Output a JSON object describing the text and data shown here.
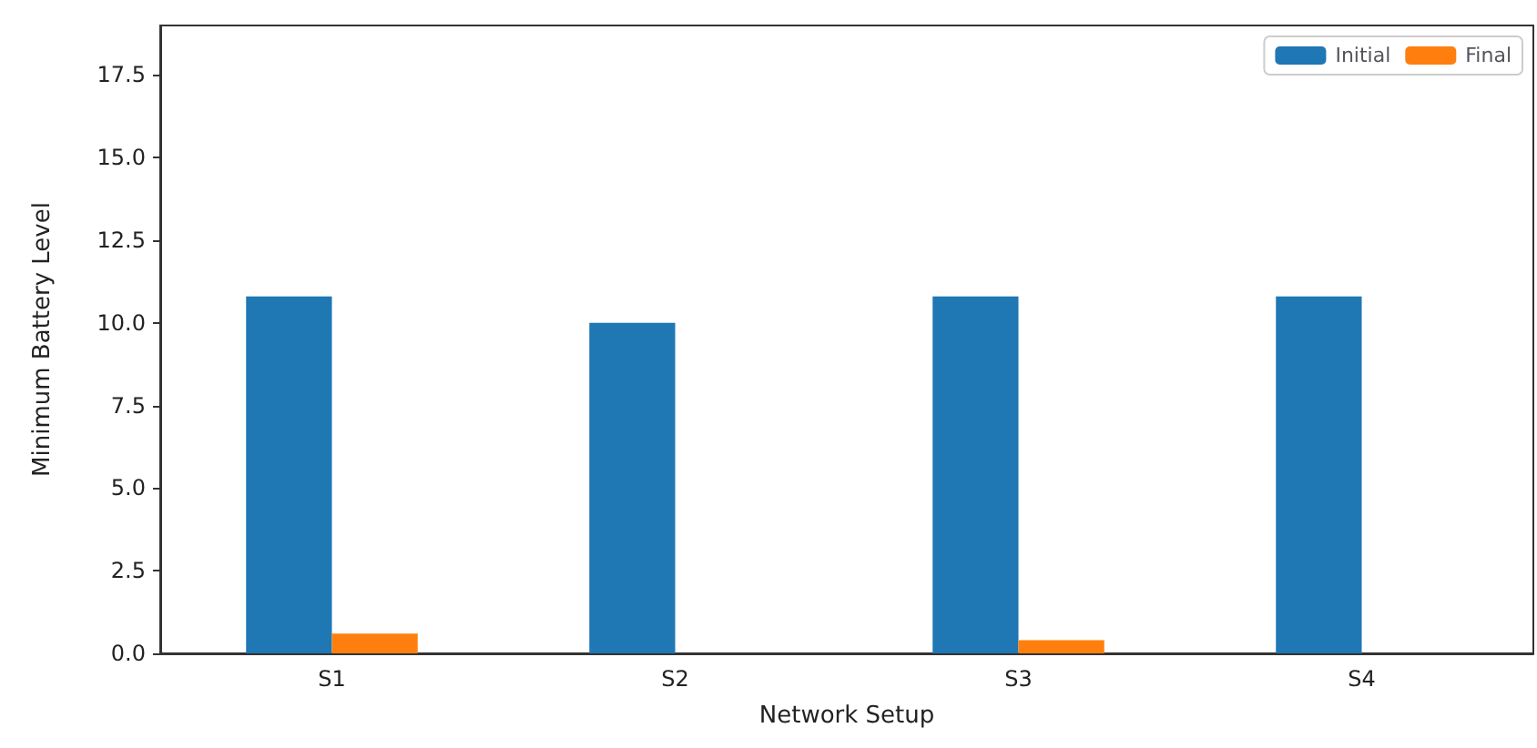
{
  "chart_data": {
    "type": "bar",
    "xlabel": "Network Setup",
    "ylabel": "Minimum Battery Level",
    "categories": [
      "S1",
      "S2",
      "S3",
      "S4"
    ],
    "series": [
      {
        "name": "Initial",
        "color": "#1f77b4",
        "values": [
          10.8,
          10.0,
          10.8,
          10.8
        ]
      },
      {
        "name": "Final",
        "color": "#ff7f0e",
        "values": [
          0.6,
          0,
          0.4,
          0
        ]
      }
    ],
    "ylim": [
      0,
      19
    ],
    "yticks": [
      {
        "value": 0,
        "label": "0.0"
      },
      2.5,
      {
        "value": 5,
        "label": "5.0"
      },
      7.5,
      {
        "value": 10,
        "label": "10.0"
      },
      12.5,
      {
        "value": 15,
        "label": "15.0"
      },
      17.5
    ],
    "grid": false,
    "legend": "top right"
  }
}
